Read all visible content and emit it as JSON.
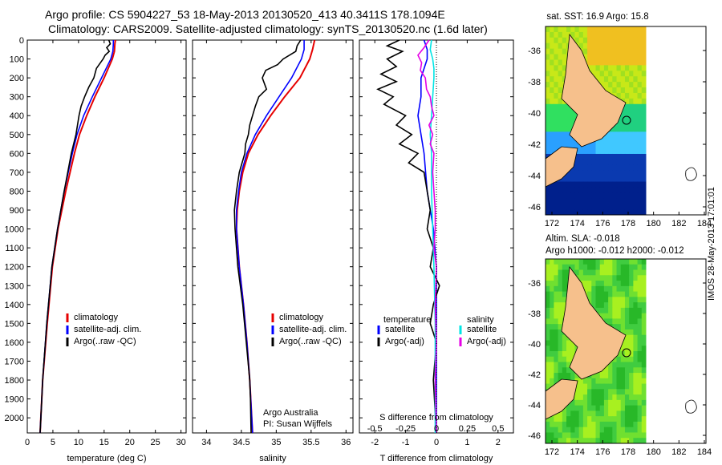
{
  "header": {
    "line1": "Argo profile: CS 5904227_53 18-May-2013 20130520_413 40.3411S 178.1094E",
    "line2": "Climatology: CARS2009. Satellite-adjusted climatology: synTS_20130520.nc (1.6d later)"
  },
  "maps": {
    "sst_title": "sat. SST: 16.9 Argo: 15.8",
    "sla_title": "Altim. SLA: -0.018",
    "height_title": "Argo h1000: -0.012 h2000: -0.012",
    "lat_ticks": [
      "-36",
      "-38",
      "-40",
      "-42",
      "-44",
      "-46"
    ],
    "lon_ticks": [
      "172",
      "174",
      "176",
      "178",
      "180",
      "182",
      "184"
    ]
  },
  "watermark": "IMOS 28-May-2013 17:01:01",
  "colors": {
    "climatology": "#e60000",
    "satellite": "#0000ff",
    "argo": "#000000",
    "sat_sal": "#00e5e5",
    "argo_sal": "#e600e6"
  },
  "chart_data": [
    {
      "type": "line",
      "xlabel": "temperature (deg C)",
      "ylabel": "",
      "xlim": [
        0,
        31
      ],
      "ylim": [
        2080,
        0
      ],
      "xticks": [
        "0",
        "5",
        "10",
        "15",
        "20",
        "25",
        "30"
      ],
      "yticks": [
        "0",
        "100",
        "200",
        "300",
        "400",
        "500",
        "600",
        "700",
        "800",
        "900",
        "1000",
        "1100",
        "1200",
        "1300",
        "1400",
        "1500",
        "1600",
        "1700",
        "1800",
        "1900",
        "2000"
      ],
      "legend": [
        "climatology",
        "satellite-adj. clim.",
        "Argo(..raw -QC)"
      ],
      "series": [
        {
          "name": "climatology",
          "depth": [
            0,
            20,
            60,
            100,
            200,
            300,
            400,
            500,
            600,
            800,
            1000,
            1200,
            1500,
            1800,
            2080
          ],
          "values": [
            17.2,
            17.1,
            17.0,
            16.6,
            15.0,
            13.2,
            11.6,
            10.2,
            9.2,
            7.5,
            6.0,
            4.9,
            3.9,
            3.0,
            2.5
          ]
        },
        {
          "name": "satellite-adj. clim.",
          "depth": [
            0,
            20,
            60,
            100,
            200,
            300,
            400,
            500,
            600,
            800,
            1000,
            1200,
            1500,
            1800,
            2080
          ],
          "values": [
            16.8,
            16.8,
            16.7,
            16.3,
            14.5,
            12.7,
            11.0,
            9.7,
            8.8,
            7.2,
            5.9,
            4.8,
            3.8,
            3.0,
            2.5
          ]
        },
        {
          "name": "Argo(..raw -QC)",
          "depth": [
            0,
            20,
            40,
            60,
            80,
            100,
            150,
            200,
            250,
            300,
            350,
            400,
            450,
            500,
            600,
            800,
            1000,
            1200,
            1500,
            1800,
            2080
          ],
          "values": [
            15.9,
            16.2,
            15.5,
            16.0,
            15.2,
            14.8,
            13.5,
            13.0,
            12.0,
            11.2,
            10.5,
            10.1,
            9.8,
            9.5,
            8.6,
            7.2,
            5.9,
            4.8,
            3.8,
            3.0,
            2.5
          ]
        }
      ]
    },
    {
      "type": "line",
      "xlabel": "salinity",
      "ylabel": "",
      "xlim": [
        33.8,
        36.1
      ],
      "ylim": [
        2080,
        0
      ],
      "xticks": [
        "34",
        "34.5",
        "35",
        "35.5",
        "36"
      ],
      "legend": [
        "climatology",
        "satellite-adj. clim.",
        "Argo(..raw -QC)"
      ],
      "annotation": [
        "Argo Australia",
        "PI: Susan Wijffels"
      ],
      "series": [
        {
          "name": "climatology",
          "depth": [
            0,
            50,
            100,
            200,
            300,
            400,
            500,
            600,
            700,
            800,
            900,
            1000,
            1200,
            1400,
            1600,
            1800,
            2080
          ],
          "values": [
            35.55,
            35.52,
            35.48,
            35.34,
            35.12,
            34.92,
            34.74,
            34.6,
            34.52,
            34.47,
            34.44,
            34.43,
            34.47,
            34.53,
            34.58,
            34.62,
            34.66
          ]
        },
        {
          "name": "satellite-adj. clim.",
          "depth": [
            0,
            50,
            100,
            200,
            300,
            400,
            500,
            600,
            700,
            800,
            900,
            1000,
            1200,
            1400,
            1600,
            1800,
            2080
          ],
          "values": [
            35.4,
            35.4,
            35.36,
            35.22,
            35.04,
            34.86,
            34.7,
            34.58,
            34.5,
            34.46,
            34.43,
            34.43,
            34.47,
            34.53,
            34.58,
            34.62,
            34.66
          ]
        },
        {
          "name": "Argo(..raw -QC)",
          "depth": [
            0,
            30,
            60,
            100,
            130,
            160,
            200,
            260,
            300,
            350,
            400,
            450,
            500,
            550,
            600,
            700,
            800,
            900,
            1000,
            1200,
            1400,
            1600,
            1800,
            1900,
            2080
          ],
          "values": [
            35.35,
            35.3,
            35.28,
            35.1,
            35.02,
            34.85,
            34.8,
            34.86,
            34.75,
            34.7,
            34.66,
            34.62,
            34.6,
            34.56,
            34.55,
            34.47,
            34.43,
            34.4,
            34.41,
            34.45,
            34.52,
            34.57,
            34.62,
            34.63,
            34.64
          ]
        }
      ]
    },
    {
      "type": "line",
      "xlabel": "T difference from climatology",
      "xlabel2": "S difference from climatology",
      "xlim": [
        -2.5,
        2.5
      ],
      "xlim2": [
        -0.625,
        0.625
      ],
      "ylim": [
        2080,
        0
      ],
      "xticks": [
        "-2",
        "-1",
        "0",
        "1",
        "2"
      ],
      "xticks2": [
        "-0.5",
        "-0.25",
        "0",
        "0.25",
        "0.5"
      ],
      "legend_titles": [
        "temperature",
        "salinity"
      ],
      "legend": [
        "satellite",
        "Argo(-adj)",
        "satellite",
        "Argo(-adj)"
      ],
      "series": [
        {
          "name": "satellite",
          "depth": [
            0,
            50,
            100,
            200,
            300,
            400,
            500,
            600,
            800,
            1000,
            1200,
            1500,
            1800,
            2080
          ],
          "values": [
            -0.4,
            -0.3,
            -0.3,
            -0.5,
            -0.5,
            -0.6,
            -0.5,
            -0.4,
            -0.3,
            -0.1,
            0,
            0,
            0,
            0
          ]
        },
        {
          "name": "Argo(-adj)",
          "depth": [
            0,
            30,
            60,
            100,
            140,
            180,
            220,
            260,
            300,
            340,
            400,
            450,
            500,
            550,
            600,
            650,
            700,
            800,
            900,
            1000,
            1100,
            1200,
            1300,
            1400,
            1500,
            1600,
            1800,
            2080
          ],
          "values": [
            -1.2,
            -1.6,
            -1.1,
            -1.6,
            -1.3,
            -1.8,
            -1.3,
            -1.9,
            -1.4,
            -1.7,
            -1.0,
            -1.3,
            -0.8,
            -1.2,
            -0.6,
            -0.9,
            -0.4,
            -0.3,
            -0.2,
            -0.3,
            -0.1,
            -0.2,
            0.1,
            -0.1,
            -0.2,
            0,
            -0.1,
            0
          ]
        },
        {
          "name": "satellite",
          "depth": [
            0,
            50,
            100,
            150,
            200,
            300,
            400,
            500,
            600,
            800,
            1000,
            1200,
            1500,
            1800,
            2080
          ],
          "values": [
            -0.04,
            -0.05,
            -0.03,
            -0.02,
            -0.02,
            -0.03,
            -0.04,
            -0.05,
            -0.04,
            -0.04,
            -0.03,
            -0.02,
            -0.01,
            -0.01,
            -0.01
          ]
        },
        {
          "name": "Argo(-adj)",
          "depth": [
            0,
            40,
            80,
            120,
            160,
            200,
            260,
            300,
            350,
            400,
            450,
            500,
            550,
            600,
            700,
            800,
            900,
            1000,
            1100,
            1200,
            1400,
            1600,
            1800,
            2080
          ],
          "values": [
            -0.06,
            -0.1,
            -0.15,
            -0.12,
            -0.13,
            -0.09,
            -0.08,
            -0.05,
            -0.04,
            -0.02,
            -0.06,
            -0.03,
            -0.05,
            -0.02,
            -0.03,
            -0.02,
            -0.01,
            -0.01,
            -0.02,
            0,
            -0.01,
            0,
            -0.01,
            0
          ]
        }
      ]
    }
  ]
}
